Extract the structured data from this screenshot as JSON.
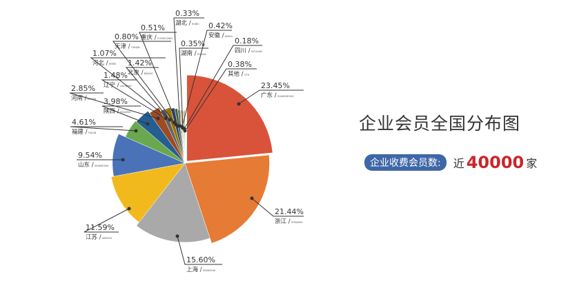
{
  "chart_data": {
    "type": "pie",
    "title": "企业会员全国分布图",
    "slices": [
      {
        "name": "广东",
        "en": "GUANGDONG",
        "value": 23.45,
        "label": "23.45%",
        "color": "#d9533a"
      },
      {
        "name": "浙江",
        "en": "ZHEJIANG",
        "value": 21.44,
        "label": "21.44%",
        "color": "#e67b35"
      },
      {
        "name": "上海",
        "en": "SHANGHAI",
        "value": 15.6,
        "label": "15.60%",
        "color": "#a9a9a9"
      },
      {
        "name": "江苏",
        "en": "JIANGSU",
        "value": 11.59,
        "label": "11.59%",
        "color": "#f2b91c"
      },
      {
        "name": "山东",
        "en": "SHANDONG",
        "value": 9.54,
        "label": "9.54%",
        "color": "#4a72b8"
      },
      {
        "name": "福建",
        "en": "FUJIAN",
        "value": 4.61,
        "label": "4.61%",
        "color": "#6aa84f"
      },
      {
        "name": "陕西",
        "en": "SHAANXI",
        "value": 3.98,
        "label": "3.98%",
        "color": "#255e91"
      },
      {
        "name": "河南",
        "en": "HENAN",
        "value": 2.85,
        "label": "2.85%",
        "color": "#9e4a23"
      },
      {
        "name": "辽宁",
        "en": "LIAONING",
        "value": 1.48,
        "label": "1.48%",
        "color": "#636363"
      },
      {
        "name": "北京",
        "en": "BEIJING",
        "value": 1.42,
        "label": "1.42%",
        "color": "#997300"
      },
      {
        "name": "河北",
        "en": "HEBEI",
        "value": 1.07,
        "label": "1.07%",
        "color": "#264478"
      },
      {
        "name": "天津",
        "en": "TIANJIN",
        "value": 0.8,
        "label": "0.80%",
        "color": "#43682b"
      },
      {
        "name": "重庆",
        "en": "CHONGQING",
        "value": 0.51,
        "label": "0.51%",
        "color": "#698ed0"
      },
      {
        "name": "湖北",
        "en": "HUBEI",
        "value": 0.33,
        "label": "0.33%",
        "color": "#f1975a"
      },
      {
        "name": "安徽",
        "en": "ANHUI",
        "value": 0.42,
        "label": "0.42%",
        "color": "#b7b7b7"
      },
      {
        "name": "湖南",
        "en": "HUNAN",
        "value": 0.35,
        "label": "0.35%",
        "color": "#ffcd33"
      },
      {
        "name": "四川",
        "en": "SICHUAN",
        "value": 0.18,
        "label": "0.18%",
        "color": "#5a8ac6"
      },
      {
        "name": "其他",
        "en": "OTH",
        "value": 0.38,
        "label": "0.38%",
        "color": "#7fb65f"
      }
    ]
  },
  "info": {
    "badge": "企业收费会员数:",
    "prefix": "近",
    "count": "40000",
    "unit": "家"
  }
}
